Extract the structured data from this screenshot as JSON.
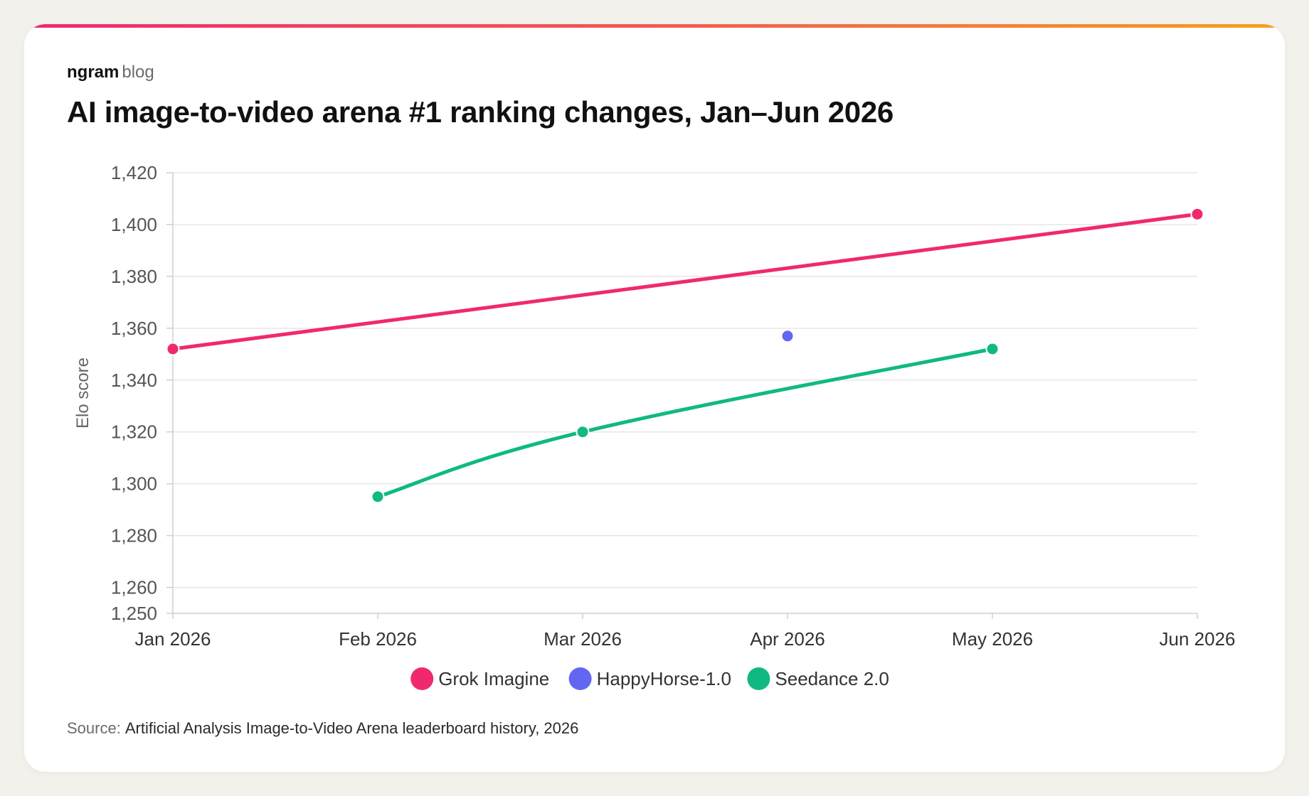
{
  "header": {
    "brand_name": "ngram",
    "brand_suffix": "blog",
    "title": "AI image-to-video arena #1 ranking changes, Jan–Jun 2026"
  },
  "source": {
    "label": "Source:",
    "text": "Artificial Analysis Image-to-Video Arena leaderboard history, 2026"
  },
  "chart_data": {
    "type": "line",
    "ylabel": "Elo score",
    "xlabel": "",
    "ylim": [
      1250,
      1420
    ],
    "y_ticks": [
      1250,
      1260,
      1280,
      1300,
      1320,
      1340,
      1360,
      1380,
      1400,
      1420
    ],
    "y_tick_labels": [
      "1,250",
      "1,260",
      "1,280",
      "1,300",
      "1,320",
      "1,340",
      "1,360",
      "1,380",
      "1,400",
      "1,420"
    ],
    "x_ticks": [
      "Jan 2026",
      "Feb 2026",
      "Mar 2026",
      "Apr 2026",
      "May 2026",
      "Jun 2026"
    ],
    "grid": true,
    "legend_position": "bottom-center",
    "series": [
      {
        "name": "Grok Imagine",
        "color": "#f0296f",
        "points": [
          {
            "x": "Jan 2026",
            "y": 1352
          },
          {
            "x": "Jun 2026",
            "y": 1404
          }
        ]
      },
      {
        "name": "HappyHorse-1.0",
        "color": "#6366f1",
        "points": [
          {
            "x": "Apr 2026",
            "y": 1357
          }
        ]
      },
      {
        "name": "Seedance 2.0",
        "color": "#10b981",
        "points": [
          {
            "x": "Feb 2026",
            "y": 1295
          },
          {
            "x": "Mar 2026",
            "y": 1320
          },
          {
            "x": "May 2026",
            "y": 1352
          }
        ]
      }
    ]
  }
}
